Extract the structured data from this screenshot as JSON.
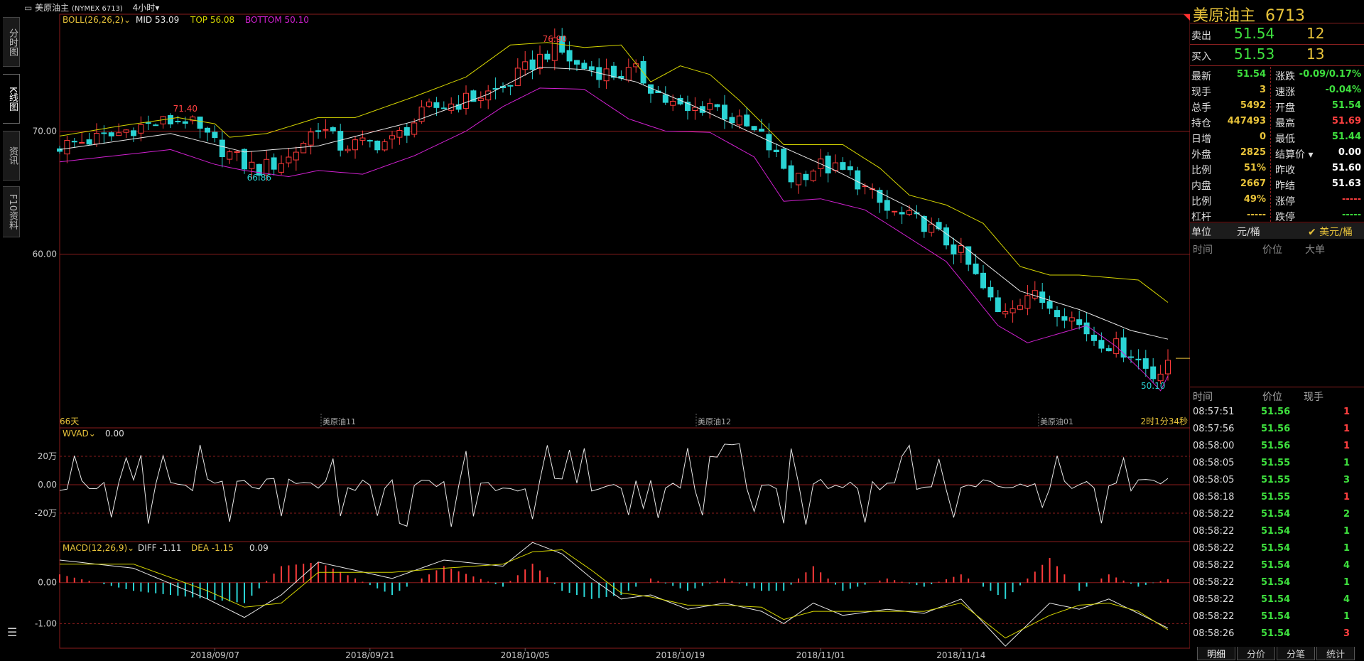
{
  "header": {
    "symbol_label": "美原油主",
    "symbol_code": "(NYMEX 6713)",
    "period": "4小时"
  },
  "left_tabs": [
    "分时图",
    "K线图",
    "资讯",
    "F10资料"
  ],
  "overlays": {
    "boll_label": "BOLL(26,26,2)",
    "mid": "MID 53.09",
    "top": "TOP 56.08",
    "bottom": "BOTTOM 50.10",
    "wvad_label": "WVAD",
    "wvad_value": "0.00",
    "macd_label": "MACD(12,26,9)",
    "diff": "DIFF -1.11",
    "dea": "DEA -1.15",
    "macd_value": "0.09",
    "days": "66天",
    "contract_marks": [
      "美原油11",
      "美原油12",
      "美原油01"
    ],
    "countdown": "2时1分34秒",
    "annotations": {
      "high": "76.90",
      "p1": "71.40",
      "p2": "66.86",
      "low": "50.10"
    }
  },
  "chart_data": {
    "type": "candlestick",
    "price_axis": {
      "ylim": [
        46.0,
        79.5
      ],
      "ticks": [
        70.0,
        60.0
      ],
      "tick_labels": [
        "70.00",
        "60.00"
      ]
    },
    "x_ticks": [
      "2018/09/07",
      "2018/09/21",
      "2018/10/05",
      "2018/10/19",
      "2018/11/01",
      "2018/11/14"
    ],
    "x_tick_index": [
      21,
      42,
      63,
      84,
      103,
      122
    ],
    "anchors": [
      [
        0,
        68.8
      ],
      [
        7,
        69.6
      ],
      [
        10,
        70.3
      ],
      [
        15,
        70.8
      ],
      [
        17,
        71.0
      ],
      [
        20,
        69.4
      ],
      [
        25,
        67.3
      ],
      [
        27,
        66.9
      ],
      [
        31,
        67.8
      ],
      [
        35,
        70.5
      ],
      [
        38,
        68.8
      ],
      [
        42,
        69.0
      ],
      [
        45,
        69.2
      ],
      [
        50,
        71.8
      ],
      [
        55,
        72.5
      ],
      [
        60,
        73.5
      ],
      [
        64,
        75.5
      ],
      [
        67,
        76.9
      ],
      [
        70,
        75.3
      ],
      [
        75,
        74.6
      ],
      [
        78,
        74.8
      ],
      [
        82,
        72.5
      ],
      [
        85,
        71.5
      ],
      [
        88,
        72.3
      ],
      [
        91,
        71.0
      ],
      [
        95,
        69.5
      ],
      [
        99,
        66.2
      ],
      [
        103,
        67.2
      ],
      [
        107,
        66.5
      ],
      [
        112,
        63.5
      ],
      [
        117,
        62.5
      ],
      [
        122,
        60.0
      ],
      [
        127,
        55.2
      ],
      [
        131,
        56.8
      ],
      [
        136,
        55.3
      ],
      [
        140,
        53.2
      ],
      [
        145,
        52.0
      ],
      [
        148,
        50.1
      ],
      [
        150,
        51.54
      ]
    ],
    "boll_mid_anchors": [
      [
        0,
        68.5
      ],
      [
        15,
        69.8
      ],
      [
        25,
        68.3
      ],
      [
        35,
        68.8
      ],
      [
        48,
        70.8
      ],
      [
        58,
        73.0
      ],
      [
        65,
        75.2
      ],
      [
        71,
        75.0
      ],
      [
        78,
        74.0
      ],
      [
        86,
        72.0
      ],
      [
        96,
        69.2
      ],
      [
        105,
        66.8
      ],
      [
        115,
        63.8
      ],
      [
        122,
        60.8
      ],
      [
        130,
        57.0
      ],
      [
        138,
        55.5
      ],
      [
        145,
        53.8
      ],
      [
        150,
        53.09
      ]
    ],
    "boll_top_anchors": [
      [
        0,
        69.6
      ],
      [
        8,
        70.4
      ],
      [
        16,
        71.1
      ],
      [
        21,
        70.6
      ],
      [
        23,
        69.5
      ],
      [
        28,
        69.8
      ],
      [
        35,
        71.1
      ],
      [
        40,
        71.1
      ],
      [
        48,
        72.8
      ],
      [
        55,
        74.4
      ],
      [
        61,
        77.0
      ],
      [
        66,
        77.2
      ],
      [
        71,
        76.8
      ],
      [
        76,
        77.0
      ],
      [
        80,
        74.0
      ],
      [
        84,
        75.3
      ],
      [
        88,
        74.6
      ],
      [
        92,
        72.5
      ],
      [
        98,
        68.9
      ],
      [
        106,
        68.9
      ],
      [
        111,
        67.0
      ],
      [
        115,
        64.8
      ],
      [
        120,
        64.0
      ],
      [
        125,
        62.5
      ],
      [
        130,
        59.0
      ],
      [
        134,
        58.3
      ],
      [
        138,
        58.3
      ],
      [
        146,
        57.9
      ],
      [
        150,
        56.08
      ]
    ],
    "boll_bottom_anchors": [
      [
        0,
        67.5
      ],
      [
        15,
        68.5
      ],
      [
        21,
        67.3
      ],
      [
        25,
        66.8
      ],
      [
        31,
        66.3
      ],
      [
        35,
        66.8
      ],
      [
        41,
        66.5
      ],
      [
        48,
        68.0
      ],
      [
        55,
        70.0
      ],
      [
        60,
        72.0
      ],
      [
        65,
        73.5
      ],
      [
        71,
        73.4
      ],
      [
        77,
        71.0
      ],
      [
        82,
        70.0
      ],
      [
        88,
        69.9
      ],
      [
        94,
        67.9
      ],
      [
        98,
        64.3
      ],
      [
        103,
        64.5
      ],
      [
        109,
        63.6
      ],
      [
        114,
        61.7
      ],
      [
        120,
        59.4
      ],
      [
        127,
        54.2
      ],
      [
        131,
        52.8
      ],
      [
        139,
        54.2
      ],
      [
        143,
        52.5
      ],
      [
        147,
        50.2
      ],
      [
        149,
        48.9
      ],
      [
        150,
        50.1
      ]
    ],
    "wvad_axis": {
      "ylim": [
        -400000,
        400000
      ],
      "ticks": [
        200000,
        0,
        -200000
      ],
      "tick_labels": [
        "20万",
        "0.00",
        "-20万"
      ]
    },
    "macd_axis": {
      "ylim": [
        -1.6,
        1.0
      ],
      "ticks": [
        0.0,
        -1.0
      ],
      "tick_labels": [
        "0.00",
        "-1.00"
      ]
    },
    "diff_anchors": [
      [
        0,
        0.55
      ],
      [
        10,
        0.35
      ],
      [
        20,
        -0.4
      ],
      [
        25,
        -0.85
      ],
      [
        30,
        -0.3
      ],
      [
        35,
        0.5
      ],
      [
        45,
        0.1
      ],
      [
        52,
        0.55
      ],
      [
        60,
        0.4
      ],
      [
        64,
        0.98
      ],
      [
        68,
        0.7
      ],
      [
        72,
        0.1
      ],
      [
        76,
        -0.4
      ],
      [
        80,
        -0.3
      ],
      [
        85,
        -0.65
      ],
      [
        90,
        -0.5
      ],
      [
        95,
        -0.7
      ],
      [
        98,
        -1.0
      ],
      [
        102,
        -0.5
      ],
      [
        106,
        -0.8
      ],
      [
        112,
        -0.65
      ],
      [
        117,
        -0.75
      ],
      [
        122,
        -0.4
      ],
      [
        128,
        -1.55
      ],
      [
        134,
        -0.5
      ],
      [
        138,
        -0.65
      ],
      [
        142,
        -0.4
      ],
      [
        146,
        -0.75
      ],
      [
        150,
        -1.11
      ]
    ],
    "dea_anchors": [
      [
        0,
        0.45
      ],
      [
        10,
        0.45
      ],
      [
        20,
        -0.2
      ],
      [
        25,
        -0.6
      ],
      [
        30,
        -0.5
      ],
      [
        35,
        0.25
      ],
      [
        45,
        0.25
      ],
      [
        52,
        0.35
      ],
      [
        60,
        0.45
      ],
      [
        64,
        0.75
      ],
      [
        68,
        0.8
      ],
      [
        72,
        0.3
      ],
      [
        76,
        -0.25
      ],
      [
        80,
        -0.35
      ],
      [
        85,
        -0.55
      ],
      [
        90,
        -0.55
      ],
      [
        95,
        -0.6
      ],
      [
        98,
        -0.9
      ],
      [
        102,
        -0.7
      ],
      [
        106,
        -0.7
      ],
      [
        112,
        -0.7
      ],
      [
        117,
        -0.7
      ],
      [
        122,
        -0.5
      ],
      [
        128,
        -1.35
      ],
      [
        134,
        -0.8
      ],
      [
        138,
        -0.55
      ],
      [
        142,
        -0.5
      ],
      [
        146,
        -0.7
      ],
      [
        150,
        -1.15
      ]
    ]
  },
  "quote": {
    "title_name": "美原油主",
    "title_code": "6713",
    "sell": {
      "label": "卖出",
      "price": "51.54",
      "vol": "12"
    },
    "buy": {
      "label": "买入",
      "price": "51.53",
      "vol": "13"
    },
    "rows": [
      {
        "l": "最新",
        "v": "51.54",
        "vc": "#3ee03e",
        "m": "涨跌",
        "r": "-0.09/0.17%",
        "rc": "#3ee03e"
      },
      {
        "l": "现手",
        "v": "3",
        "vc": "#e8c33a",
        "m": "速涨",
        "r": "-0.04%",
        "rc": "#3ee03e"
      },
      {
        "l": "总手",
        "v": "5492",
        "vc": "#e8c33a",
        "m": "开盘",
        "r": "51.54",
        "rc": "#3ee03e"
      },
      {
        "l": "持仓",
        "v": "447493",
        "vc": "#e8c33a",
        "m": "最高",
        "r": "51.69",
        "rc": "#ff4040"
      },
      {
        "l": "日增",
        "v": "0",
        "vc": "#e8c33a",
        "m": "最低",
        "r": "51.44",
        "rc": "#3ee03e"
      },
      {
        "l": "外盘",
        "v": "2825",
        "vc": "#e8c33a",
        "m": "结算价 ▾",
        "r": "0.00",
        "rc": "#ffffff"
      },
      {
        "l": "比例",
        "v": "51%",
        "vc": "#e8c33a",
        "m": "昨收",
        "r": "51.60",
        "rc": "#ffffff"
      },
      {
        "l": "内盘",
        "v": "2667",
        "vc": "#e8c33a",
        "m": "昨结",
        "r": "51.63",
        "rc": "#ffffff"
      },
      {
        "l": "比例",
        "v": "49%",
        "vc": "#e8c33a",
        "m": "涨停",
        "r": "-----",
        "rc": "#ff4040"
      },
      {
        "l": "杠杆",
        "v": "-----",
        "vc": "#e8c33a",
        "m": "跌停",
        "r": "-----",
        "rc": "#3ee03e"
      }
    ],
    "unit_label": "单位",
    "unit_cny": "元/桶",
    "unit_usd": "✔ 美元/桶",
    "big_header": {
      "time": "时间",
      "price": "价位",
      "big": "大单"
    },
    "trade_header": {
      "time": "时间",
      "price": "价位",
      "vol": "现手"
    },
    "trades": [
      {
        "t": "08:57:51",
        "p": "51.56",
        "v": "1",
        "vc": "#ff4040"
      },
      {
        "t": "08:57:56",
        "p": "51.56",
        "v": "1",
        "vc": "#ff4040"
      },
      {
        "t": "08:58:00",
        "p": "51.56",
        "v": "1",
        "vc": "#ff4040"
      },
      {
        "t": "08:58:05",
        "p": "51.55",
        "v": "1",
        "vc": "#3ee03e"
      },
      {
        "t": "08:58:05",
        "p": "51.55",
        "v": "3",
        "vc": "#3ee03e"
      },
      {
        "t": "08:58:18",
        "p": "51.55",
        "v": "1",
        "vc": "#ff4040"
      },
      {
        "t": "08:58:22",
        "p": "51.54",
        "v": "2",
        "vc": "#3ee03e"
      },
      {
        "t": "08:58:22",
        "p": "51.54",
        "v": "1",
        "vc": "#3ee03e"
      },
      {
        "t": "08:58:22",
        "p": "51.54",
        "v": "1",
        "vc": "#3ee03e"
      },
      {
        "t": "08:58:22",
        "p": "51.54",
        "v": "4",
        "vc": "#3ee03e"
      },
      {
        "t": "08:58:22",
        "p": "51.54",
        "v": "1",
        "vc": "#3ee03e"
      },
      {
        "t": "08:58:22",
        "p": "51.54",
        "v": "4",
        "vc": "#3ee03e"
      },
      {
        "t": "08:58:22",
        "p": "51.54",
        "v": "1",
        "vc": "#3ee03e"
      },
      {
        "t": "08:58:26",
        "p": "51.54",
        "v": "3",
        "vc": "#ff4040"
      }
    ],
    "bottom_tabs": [
      "明细",
      "分价",
      "分笔",
      "统计"
    ]
  },
  "colors": {
    "up": "#ff3b3b",
    "down": "#2ad4d4",
    "mid": "#e8e8e8",
    "top": "#d4d400",
    "bottom": "#d020d0",
    "grid": "#8a1c1c",
    "accent": "#e8c33a"
  }
}
